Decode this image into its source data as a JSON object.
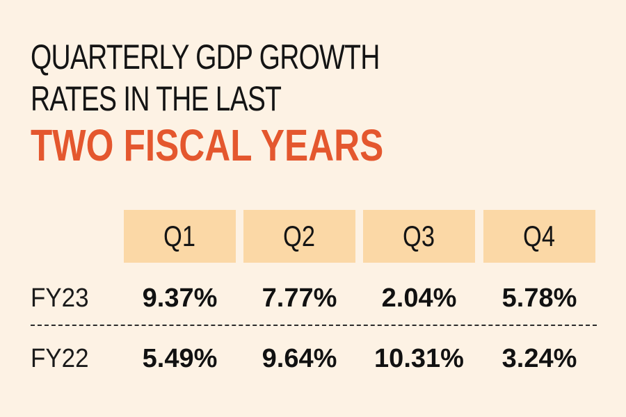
{
  "title": {
    "line1": "QUARTERLY GDP GROWTH",
    "line2": "RATES IN THE LAST",
    "accent": "TWO FISCAL YEARS"
  },
  "colors": {
    "background": "#fdf2e4",
    "accent": "#e4572e",
    "header_fill": "#fbd8a6",
    "text": "#111111"
  },
  "chart_data": {
    "type": "table",
    "title": "QUARTERLY GDP GROWTH RATES IN THE LAST TWO FISCAL YEARS",
    "columns": [
      "Q1",
      "Q2",
      "Q3",
      "Q4"
    ],
    "rows": [
      {
        "label": "FY23",
        "values": [
          "9.37%",
          "7.77%",
          "2.04%",
          "5.78%"
        ]
      },
      {
        "label": "FY22",
        "values": [
          "5.49%",
          "9.64%",
          "10.31%",
          "3.24%"
        ]
      }
    ]
  }
}
